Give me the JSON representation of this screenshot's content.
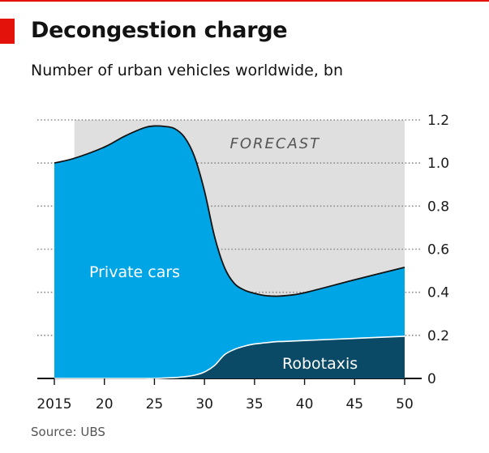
{
  "header": {
    "title": "Decongestion charge",
    "subtitle": "Number of urban vehicles worldwide, bn"
  },
  "footer": {
    "source": "Source: UBS"
  },
  "colors": {
    "accent_red": "#e3120b",
    "private_cars": "#00a5e6",
    "robotaxis": "#0b4a66",
    "forecast_shade": "#dfdfdf",
    "gridline": "#8c8c8c"
  },
  "chart_data": {
    "type": "area",
    "stacked": true,
    "x_tick_labels": [
      "2015",
      "20",
      "25",
      "30",
      "35",
      "40",
      "45",
      "50"
    ],
    "x_ticks": [
      2015,
      2020,
      2025,
      2030,
      2035,
      2040,
      2045,
      2050
    ],
    "xlim": [
      2015,
      2050
    ],
    "ylim": [
      0,
      1.2
    ],
    "y_ticks": [
      0,
      0.2,
      0.4,
      0.6,
      0.8,
      1.0,
      1.2
    ],
    "y_tick_labels": [
      "0",
      "0.2",
      "0.4",
      "0.6",
      "0.8",
      "1.0",
      "1.2"
    ],
    "y_axis_side": "right",
    "grid": "dotted horizontal",
    "forecast": {
      "label": "FORECAST",
      "start": 2017,
      "end": 2050
    },
    "x": [
      2015,
      2017,
      2020,
      2022,
      2024,
      2025,
      2026,
      2027,
      2028,
      2029,
      2030,
      2031,
      2032,
      2033,
      2034,
      2035,
      2036,
      2037,
      2038,
      2040,
      2045,
      2050
    ],
    "series": [
      {
        "name": "Robotaxis",
        "values": [
          0,
          0,
          0,
          0,
          0,
          0,
          0.002,
          0.004,
          0.008,
          0.015,
          0.03,
          0.06,
          0.11,
          0.135,
          0.15,
          0.16,
          0.165,
          0.17,
          0.172,
          0.176,
          0.186,
          0.196
        ]
      },
      {
        "name": "Private cars",
        "values": [
          1.0,
          1.022,
          1.074,
          1.124,
          1.164,
          1.172,
          1.168,
          1.156,
          1.112,
          1.015,
          0.84,
          0.6,
          0.405,
          0.305,
          0.26,
          0.235,
          0.22,
          0.212,
          0.212,
          0.222,
          0.272,
          0.32
        ]
      }
    ]
  }
}
